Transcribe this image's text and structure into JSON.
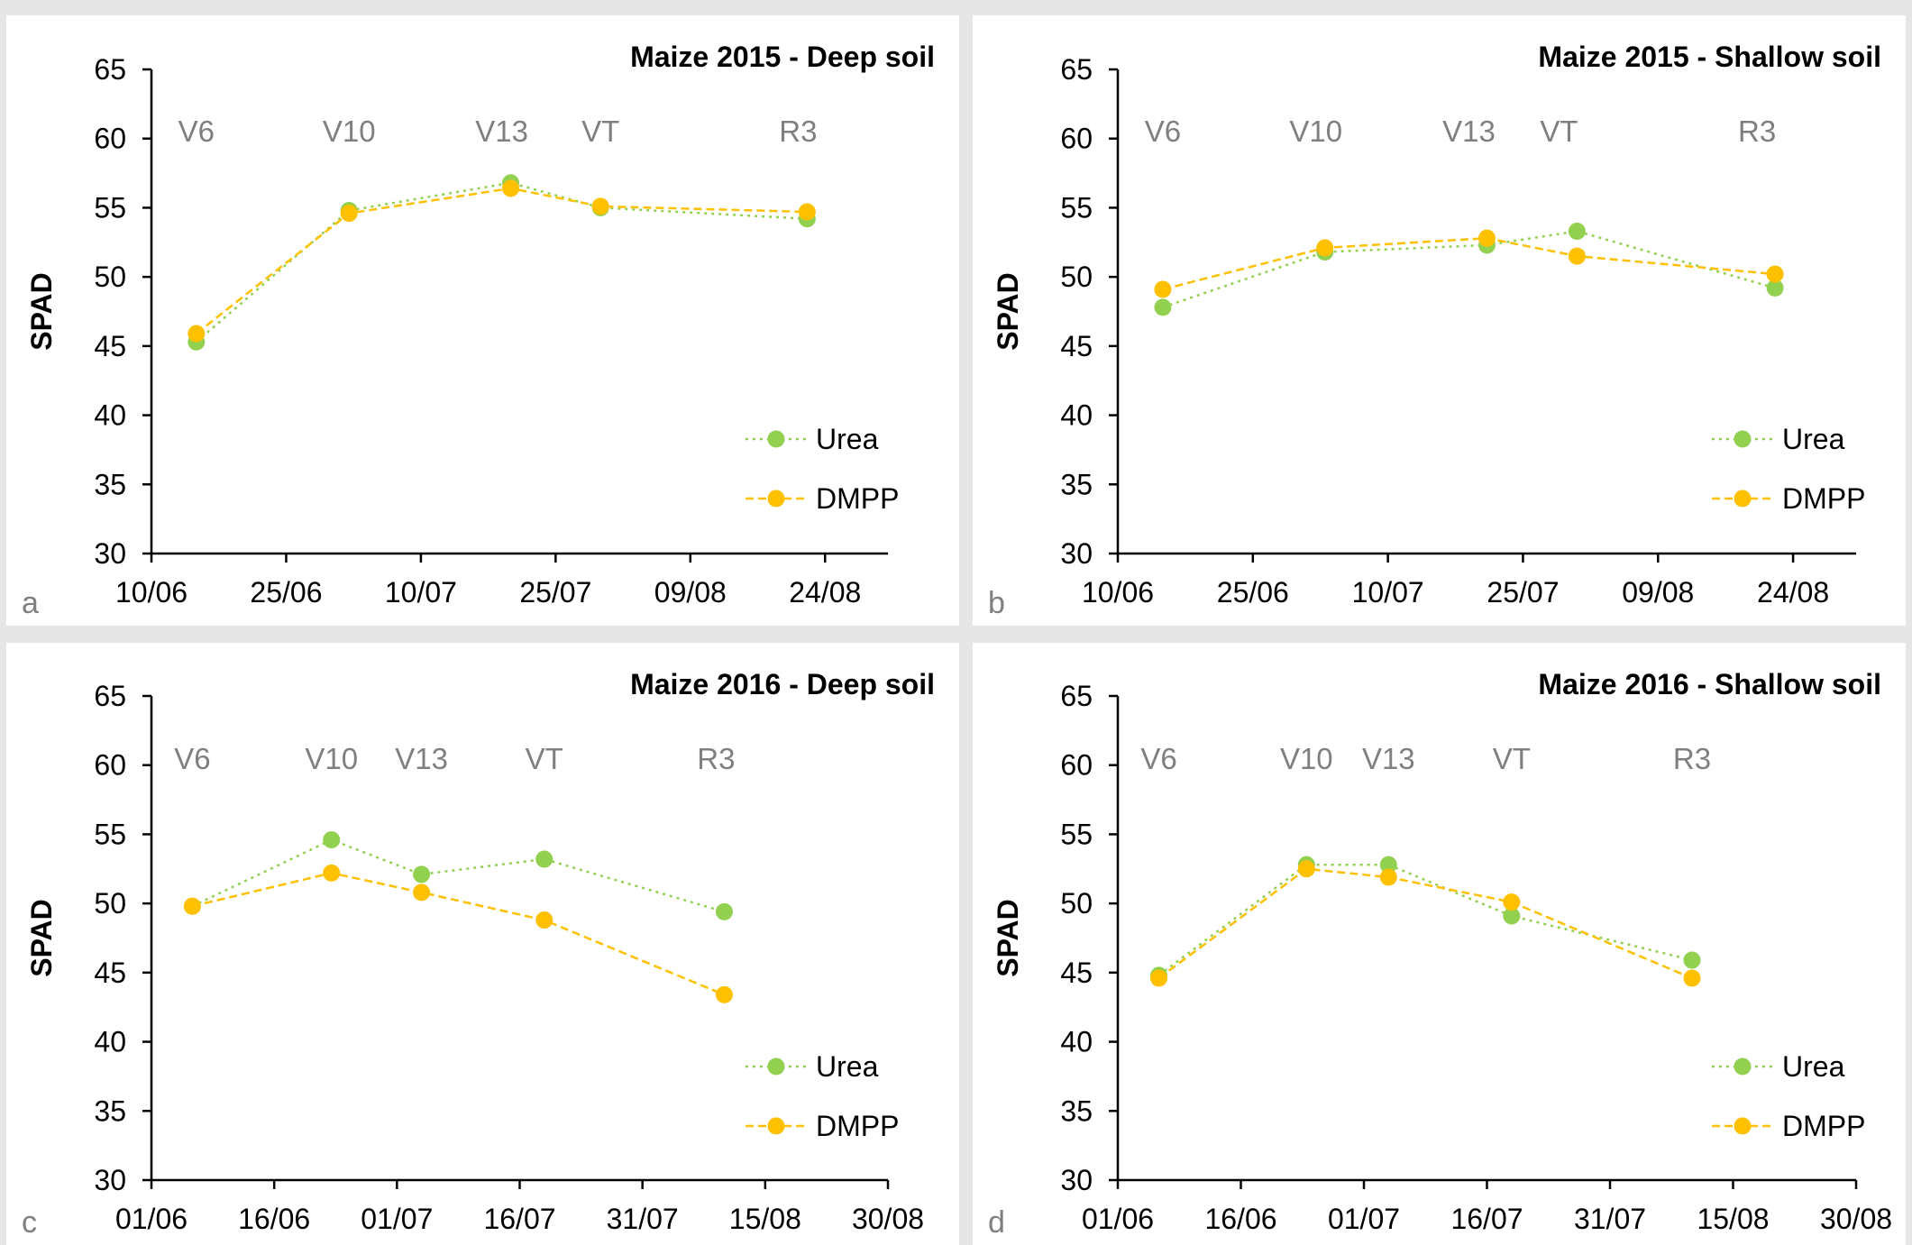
{
  "figure": {
    "background": "#e6e6e6",
    "panel_background": "#ffffff",
    "axis_color": "#000000",
    "stage_color": "#7f7f7f",
    "letter_color": "#7f7f7f"
  },
  "chart_data": [
    {
      "type": "line",
      "panel_letter": "a",
      "title": "Maize 2015 - Deep soil",
      "xlabel": "",
      "ylabel": "SPAD",
      "ylim": [
        30,
        65
      ],
      "yticks": [
        30,
        35,
        40,
        45,
        50,
        55,
        60,
        65
      ],
      "xlim": [
        "2015-06-10",
        "2015-08-31"
      ],
      "xticks": [
        "2015-06-10",
        "2015-06-25",
        "2015-07-10",
        "2015-07-25",
        "2015-08-09",
        "2015-08-24"
      ],
      "xtick_labels": [
        "10/06",
        "25/06",
        "10/07",
        "25/07",
        "09/08",
        "24/08"
      ],
      "grid": false,
      "legend_position": "bottom-right",
      "stages": [
        {
          "label": "V6",
          "x": "2015-06-15"
        },
        {
          "label": "V10",
          "x": "2015-07-02"
        },
        {
          "label": "V13",
          "x": "2015-07-19"
        },
        {
          "label": "VT",
          "x": "2015-07-30"
        },
        {
          "label": "R3",
          "x": "2015-08-21"
        }
      ],
      "series": [
        {
          "name": "Urea",
          "color": "#92d050",
          "dash": "dotted",
          "x": [
            "2015-06-15",
            "2015-07-02",
            "2015-07-20",
            "2015-07-30",
            "2015-08-22"
          ],
          "values": [
            45.3,
            54.8,
            56.8,
            55.0,
            54.2
          ]
        },
        {
          "name": "DMPP",
          "color": "#ffc000",
          "dash": "dashed",
          "x": [
            "2015-06-15",
            "2015-07-02",
            "2015-07-20",
            "2015-07-30",
            "2015-08-22"
          ],
          "values": [
            45.9,
            54.6,
            56.4,
            55.1,
            54.7
          ]
        }
      ]
    },
    {
      "type": "line",
      "panel_letter": "b",
      "title": "Maize 2015 - Shallow soil",
      "xlabel": "",
      "ylabel": "SPAD",
      "ylim": [
        30,
        65
      ],
      "yticks": [
        30,
        35,
        40,
        45,
        50,
        55,
        60,
        65
      ],
      "xlim": [
        "2015-06-10",
        "2015-08-31"
      ],
      "xticks": [
        "2015-06-10",
        "2015-06-25",
        "2015-07-10",
        "2015-07-25",
        "2015-08-09",
        "2015-08-24"
      ],
      "xtick_labels": [
        "10/06",
        "25/06",
        "10/07",
        "25/07",
        "09/08",
        "24/08"
      ],
      "grid": false,
      "legend_position": "bottom-right",
      "stages": [
        {
          "label": "V6",
          "x": "2015-06-15"
        },
        {
          "label": "V10",
          "x": "2015-07-02"
        },
        {
          "label": "V13",
          "x": "2015-07-19"
        },
        {
          "label": "VT",
          "x": "2015-07-29"
        },
        {
          "label": "R3",
          "x": "2015-08-20"
        }
      ],
      "series": [
        {
          "name": "Urea",
          "color": "#92d050",
          "dash": "dotted",
          "x": [
            "2015-06-15",
            "2015-07-03",
            "2015-07-21",
            "2015-07-31",
            "2015-08-22"
          ],
          "values": [
            47.8,
            51.8,
            52.3,
            53.3,
            49.2
          ]
        },
        {
          "name": "DMPP",
          "color": "#ffc000",
          "dash": "dashed",
          "x": [
            "2015-06-15",
            "2015-07-03",
            "2015-07-21",
            "2015-07-31",
            "2015-08-22"
          ],
          "values": [
            49.1,
            52.1,
            52.8,
            51.5,
            50.2
          ]
        }
      ]
    },
    {
      "type": "line",
      "panel_letter": "c",
      "title": "Maize 2016 - Deep soil",
      "xlabel": "",
      "ylabel": "SPAD",
      "ylim": [
        30,
        65
      ],
      "yticks": [
        30,
        35,
        40,
        45,
        50,
        55,
        60,
        65
      ],
      "xlim": [
        "2016-06-01",
        "2016-08-30"
      ],
      "xticks": [
        "2016-06-01",
        "2016-06-16",
        "2016-07-01",
        "2016-07-16",
        "2016-07-31",
        "2016-08-15",
        "2016-08-30"
      ],
      "xtick_labels": [
        "01/06",
        "16/06",
        "01/07",
        "16/07",
        "31/07",
        "15/08",
        "30/08"
      ],
      "grid": false,
      "legend_position": "bottom-right",
      "stages": [
        {
          "label": "V6",
          "x": "2016-06-06"
        },
        {
          "label": "V10",
          "x": "2016-06-23"
        },
        {
          "label": "V13",
          "x": "2016-07-04"
        },
        {
          "label": "VT",
          "x": "2016-07-19"
        },
        {
          "label": "R3",
          "x": "2016-08-09"
        }
      ],
      "series": [
        {
          "name": "Urea",
          "color": "#92d050",
          "dash": "dotted",
          "x": [
            "2016-06-06",
            "2016-06-23",
            "2016-07-04",
            "2016-07-19",
            "2016-08-10"
          ],
          "values": [
            49.8,
            54.6,
            52.1,
            53.2,
            49.4
          ]
        },
        {
          "name": "DMPP",
          "color": "#ffc000",
          "dash": "dashed",
          "x": [
            "2016-06-06",
            "2016-06-23",
            "2016-07-04",
            "2016-07-19",
            "2016-08-10"
          ],
          "values": [
            49.8,
            52.2,
            50.8,
            48.8,
            43.4
          ]
        }
      ]
    },
    {
      "type": "line",
      "panel_letter": "d",
      "title": "Maize 2016 - Shallow soil",
      "xlabel": "",
      "ylabel": "SPAD",
      "ylim": [
        30,
        65
      ],
      "yticks": [
        30,
        35,
        40,
        45,
        50,
        55,
        60,
        65
      ],
      "xlim": [
        "2016-06-01",
        "2016-08-30"
      ],
      "xticks": [
        "2016-06-01",
        "2016-06-16",
        "2016-07-01",
        "2016-07-16",
        "2016-07-31",
        "2016-08-15",
        "2016-08-30"
      ],
      "xtick_labels": [
        "01/06",
        "16/06",
        "01/07",
        "16/07",
        "31/07",
        "15/08",
        "30/08"
      ],
      "grid": false,
      "legend_position": "bottom-right",
      "stages": [
        {
          "label": "V6",
          "x": "2016-06-06"
        },
        {
          "label": "V10",
          "x": "2016-06-24"
        },
        {
          "label": "V13",
          "x": "2016-07-04"
        },
        {
          "label": "VT",
          "x": "2016-07-19"
        },
        {
          "label": "R3",
          "x": "2016-08-10"
        }
      ],
      "series": [
        {
          "name": "Urea",
          "color": "#92d050",
          "dash": "dotted",
          "x": [
            "2016-06-06",
            "2016-06-24",
            "2016-07-04",
            "2016-07-19",
            "2016-08-10"
          ],
          "values": [
            44.8,
            52.8,
            52.8,
            49.1,
            45.9
          ]
        },
        {
          "name": "DMPP",
          "color": "#ffc000",
          "dash": "dashed",
          "x": [
            "2016-06-06",
            "2016-06-24",
            "2016-07-04",
            "2016-07-19",
            "2016-08-10"
          ],
          "values": [
            44.6,
            52.5,
            51.9,
            50.1,
            44.6
          ]
        }
      ]
    }
  ]
}
